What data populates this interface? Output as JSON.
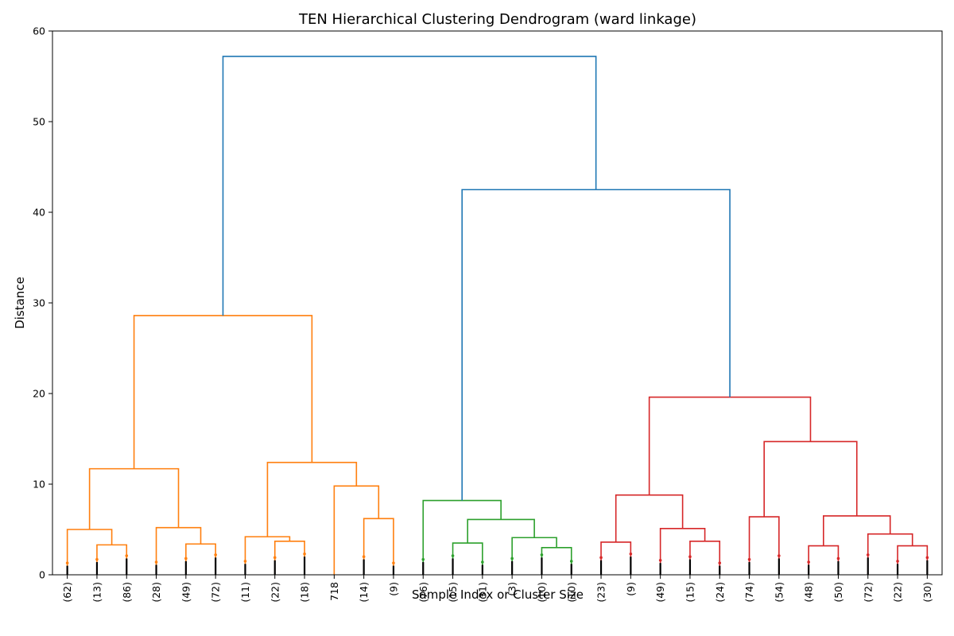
{
  "chart_data": {
    "type": "dendrogram",
    "title": "TEN Hierarchical Clustering Dendrogram (ward linkage)",
    "xlabel": "Sample Index or Cluster Size",
    "ylabel": "Distance",
    "ylim": [
      0,
      60
    ],
    "yticks": [
      0,
      10,
      20,
      30,
      40,
      50,
      60
    ],
    "grid": false,
    "legend": "none",
    "leaf_labels": [
      "(62)",
      "(13)",
      "(86)",
      "(28)",
      "(49)",
      "(72)",
      "(11)",
      "(22)",
      "(18)",
      "718",
      "(14)",
      "(9)",
      "(76)",
      "(15)",
      "(31)",
      "(3)",
      "(10)",
      "(10)",
      "(23)",
      "(9)",
      "(49)",
      "(15)",
      "(24)",
      "(74)",
      "(54)",
      "(48)",
      "(50)",
      "(72)",
      "(22)",
      "(30)"
    ],
    "colors": {
      "above_threshold": "#1f77b4",
      "cluster_1": "#ff7f0e",
      "cluster_2": "#2ca02c",
      "cluster_3": "#d62728"
    },
    "links": [
      {
        "left": "L1",
        "right": "L2",
        "height": 3.3,
        "color": "cluster_1"
      },
      {
        "left": "L0",
        "right": "N0",
        "height": 5.0,
        "color": "cluster_1"
      },
      {
        "left": "L4",
        "right": "L5",
        "height": 3.4,
        "color": "cluster_1"
      },
      {
        "left": "L3",
        "right": "N2",
        "height": 5.2,
        "color": "cluster_1"
      },
      {
        "left": "N1",
        "right": "N3",
        "height": 11.7,
        "color": "cluster_1"
      },
      {
        "left": "L7",
        "right": "L8",
        "height": 3.7,
        "color": "cluster_1"
      },
      {
        "left": "L6",
        "right": "N5",
        "height": 4.2,
        "color": "cluster_1"
      },
      {
        "left": "L10",
        "right": "L11",
        "height": 6.2,
        "color": "cluster_1"
      },
      {
        "left": "L9",
        "right": "N7",
        "height": 9.8,
        "color": "cluster_1"
      },
      {
        "left": "N6",
        "right": "N8",
        "height": 12.4,
        "color": "cluster_1"
      },
      {
        "left": "N4",
        "right": "N9",
        "height": 28.6,
        "color": "cluster_1"
      },
      {
        "left": "L13",
        "right": "L14",
        "height": 3.5,
        "color": "cluster_2"
      },
      {
        "left": "L16",
        "right": "L17",
        "height": 3.0,
        "color": "cluster_2"
      },
      {
        "left": "L15",
        "right": "N12",
        "height": 4.1,
        "color": "cluster_2"
      },
      {
        "left": "N11",
        "right": "N13",
        "height": 6.1,
        "color": "cluster_2"
      },
      {
        "left": "L12",
        "right": "N14",
        "height": 8.2,
        "color": "cluster_2"
      },
      {
        "left": "L18",
        "right": "L19",
        "height": 3.6,
        "color": "cluster_3"
      },
      {
        "left": "L21",
        "right": "L22",
        "height": 3.7,
        "color": "cluster_3"
      },
      {
        "left": "L20",
        "right": "N17",
        "height": 5.1,
        "color": "cluster_3"
      },
      {
        "left": "N16",
        "right": "N18",
        "height": 8.8,
        "color": "cluster_3"
      },
      {
        "left": "L23",
        "right": "L24",
        "height": 6.4,
        "color": "cluster_3"
      },
      {
        "left": "L25",
        "right": "L26",
        "height": 3.2,
        "color": "cluster_3"
      },
      {
        "left": "L28",
        "right": "L29",
        "height": 3.2,
        "color": "cluster_3"
      },
      {
        "left": "L27",
        "right": "N22",
        "height": 4.5,
        "color": "cluster_3"
      },
      {
        "left": "N21",
        "right": "N23",
        "height": 6.5,
        "color": "cluster_3"
      },
      {
        "left": "N20",
        "right": "N24",
        "height": 14.7,
        "color": "cluster_3"
      },
      {
        "left": "N19",
        "right": "N25",
        "height": 19.6,
        "color": "cluster_3"
      },
      {
        "left": "N15",
        "right": "N26",
        "height": 42.5,
        "color": "above_threshold"
      },
      {
        "left": "N10",
        "right": "N27",
        "height": 57.2,
        "color": "above_threshold"
      }
    ]
  }
}
